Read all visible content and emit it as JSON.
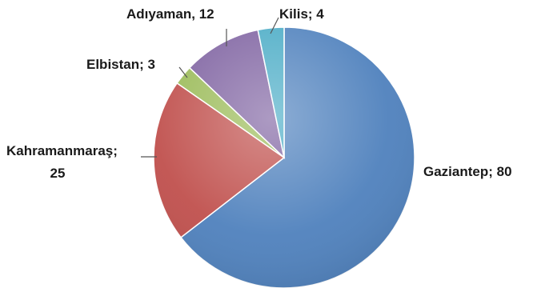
{
  "chart_data": {
    "type": "pie",
    "title": "",
    "slices": [
      {
        "name": "Gaziantep",
        "value": 80,
        "color": "#4f81bd",
        "label": "Gaziantep; 80"
      },
      {
        "name": "Kahramanmaraş",
        "value": 25,
        "color": "#c0504d",
        "label_line1": "Kahramanmaraş;",
        "label_line2": "25"
      },
      {
        "name": "Elbistan",
        "value": 3,
        "color": "#9bbb59",
        "label": "Elbistan; 3"
      },
      {
        "name": "Adıyaman",
        "value": 12,
        "color": "#8064a2",
        "label": "Adıyaman, 12"
      },
      {
        "name": "Kilis",
        "value": 4,
        "color": "#4bacc6",
        "label": "Kilis; 4"
      }
    ],
    "legend": "none"
  }
}
